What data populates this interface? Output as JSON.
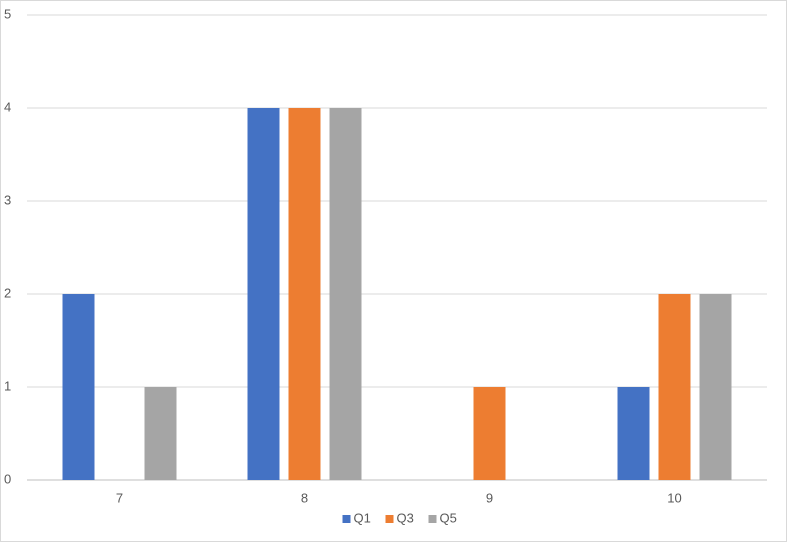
{
  "chart_data": {
    "type": "bar",
    "categories": [
      "7",
      "8",
      "9",
      "10"
    ],
    "series": [
      {
        "name": "Q1",
        "color": "#4472c4",
        "values": [
          2,
          4,
          0,
          1
        ]
      },
      {
        "name": "Q3",
        "color": "#ed7d31",
        "values": [
          0,
          4,
          1,
          2
        ]
      },
      {
        "name": "Q5",
        "color": "#a5a5a5",
        "values": [
          1,
          4,
          0,
          2
        ]
      }
    ],
    "ylim": [
      0,
      5
    ],
    "yticks": [
      0,
      1,
      2,
      3,
      4,
      5
    ],
    "grid": true,
    "legend": "bottom"
  }
}
